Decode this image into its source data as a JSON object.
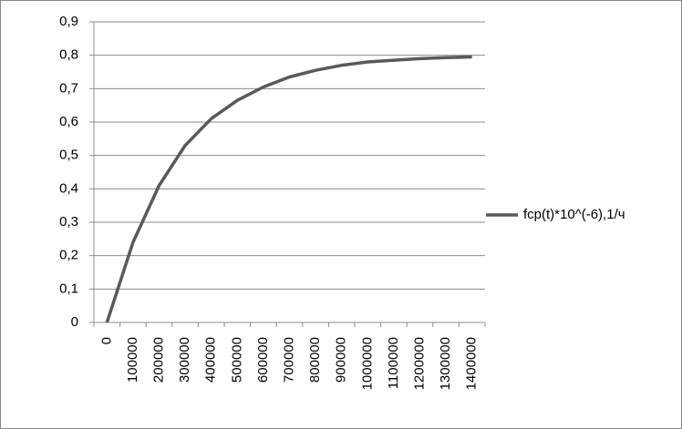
{
  "chart_data": {
    "type": "line",
    "categories": [
      "0",
      "100000",
      "200000",
      "300000",
      "400000",
      "500000",
      "600000",
      "700000",
      "800000",
      "900000",
      "1000000",
      "1100000",
      "1200000",
      "1300000",
      "1400000"
    ],
    "series": [
      {
        "name": "fcp(t)*10^(-6),1/ч",
        "color": "#595959",
        "values": [
          0,
          0.24,
          0.41,
          0.53,
          0.61,
          0.665,
          0.705,
          0.735,
          0.755,
          0.77,
          0.78,
          0.785,
          0.79,
          0.793,
          0.795
        ]
      }
    ],
    "ylim": [
      0,
      0.9
    ],
    "yticks": [
      0,
      {
        "value": 0.1,
        "label": "0,1"
      },
      {
        "value": 0.2,
        "label": "0,2"
      },
      {
        "value": 0.3,
        "label": "0,3"
      },
      {
        "value": 0.4,
        "label": "0,4"
      },
      {
        "value": 0.5,
        "label": "0,5"
      },
      {
        "value": 0.6,
        "label": "0,6"
      },
      {
        "value": 0.7,
        "label": "0,7"
      },
      {
        "value": 0.8,
        "label": "0,8"
      },
      {
        "value": 0.9,
        "label": "0,9"
      }
    ],
    "grid": true,
    "legend": "right"
  }
}
